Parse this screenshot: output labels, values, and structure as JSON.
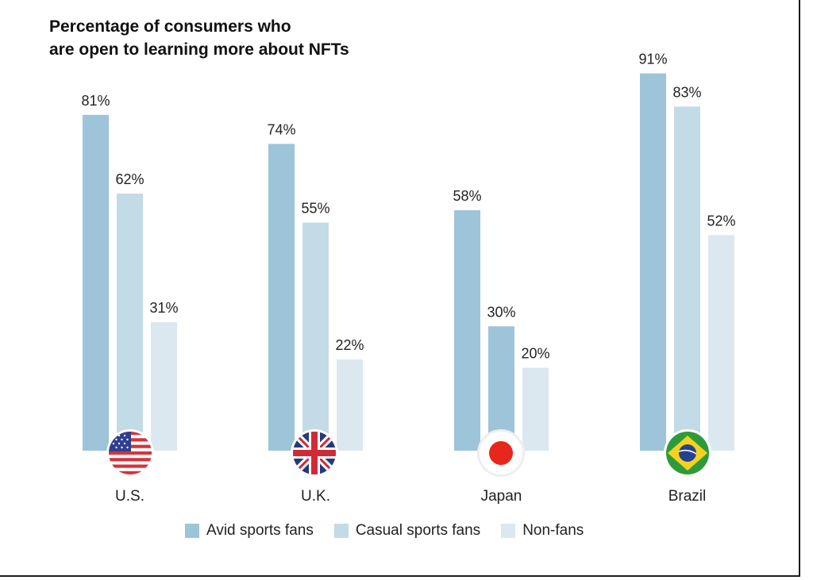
{
  "chart_data": {
    "type": "bar",
    "title": "Percentage of consumers who are open to learning more about NFTs",
    "title_lines": [
      "Percentage of consumers who",
      "are open to learning more about NFTs"
    ],
    "categories": [
      "U.S.",
      "U.K.",
      "Japan",
      "Brazil"
    ],
    "series": [
      {
        "name": "Avid sports fans",
        "color": "#9dc4d8",
        "values": [
          81,
          74,
          58,
          91
        ]
      },
      {
        "name": "Casual sports fans",
        "color": "#c2dbe6",
        "values": [
          62,
          55,
          30,
          83
        ]
      },
      {
        "name": "Non-fans",
        "color": "#dbe8f0",
        "values": [
          31,
          22,
          20,
          52
        ]
      }
    ],
    "value_suffix": "%",
    "ylim": [
      0,
      100
    ],
    "grid": false,
    "legend_position": "bottom",
    "category_icons": [
      "us-flag-icon",
      "uk-flag-icon",
      "japan-flag-icon",
      "brazil-flag-icon"
    ],
    "bar_color_overrides": [
      {
        "category": "Japan",
        "series": "Casual sports fans",
        "color": "#9dc4d8"
      }
    ]
  }
}
